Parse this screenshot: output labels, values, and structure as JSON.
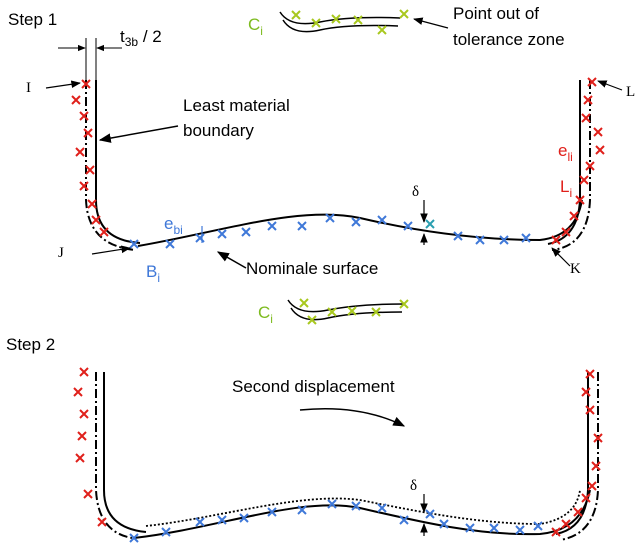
{
  "colors": {
    "red_marker": "#e0201b",
    "blue_marker": "#3f78d8",
    "green_marker": "#a8c81e",
    "green_label": "#7dbb1f",
    "teal_marker": "#2a9fb0",
    "line": "#000000"
  },
  "step1": {
    "title": "Step 1",
    "thickness_label": {
      "main": "t",
      "sub": "3b",
      "rest": " / 2"
    },
    "point_I": "I",
    "point_J": "J",
    "point_K": "K",
    "point_L": "L",
    "least_material_line1": "Least material",
    "least_material_line2": "boundary",
    "point_out_line1": "Point out of",
    "point_out_line2": "tolerance zone",
    "nominal_surface": "Nominale surface",
    "delta": "δ",
    "ci": {
      "main": "C",
      "sub": "i"
    },
    "eli": {
      "main": "e",
      "sub": "li"
    },
    "li": {
      "main": "L",
      "sub": "i"
    },
    "ebi": {
      "main": "e",
      "sub": "bi"
    },
    "bi": {
      "main": "B",
      "sub": "i"
    }
  },
  "middle": {
    "ci": {
      "main": "C",
      "sub": "i"
    }
  },
  "step2": {
    "title": "Step 2",
    "second_displacement": "Second displacement",
    "delta": "δ"
  }
}
